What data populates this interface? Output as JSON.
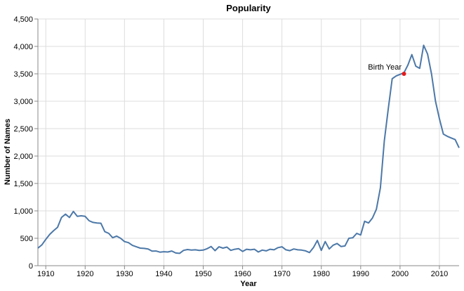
{
  "chart_data": {
    "type": "line",
    "title": "Popularity",
    "xlabel": "Year",
    "ylabel": "Number of Names",
    "xlim": [
      1908,
      2015
    ],
    "ylim": [
      0,
      4500
    ],
    "x_ticks": [
      "1910",
      "1920",
      "1930",
      "1940",
      "1950",
      "1960",
      "1970",
      "1980",
      "1990",
      "2000",
      "2010"
    ],
    "y_ticks": [
      "0",
      "500",
      "1,000",
      "1,500",
      "2,000",
      "2,500",
      "3,000",
      "3,500",
      "4,000",
      "4,500"
    ],
    "grid": true,
    "line_color": "#4c78a8",
    "highlight_color": "#e41a1c",
    "annotation": {
      "label": "Birth Year",
      "x": 2001,
      "y": 3500
    },
    "series": [
      {
        "x": [
          1908,
          1909,
          1910,
          1911,
          1912,
          1913,
          1914,
          1915,
          1916,
          1917,
          1918,
          1919,
          1920,
          1921,
          1922,
          1923,
          1924,
          1925,
          1926,
          1927,
          1928,
          1929,
          1930,
          1931,
          1932,
          1933,
          1934,
          1935,
          1936,
          1937,
          1938,
          1939,
          1940,
          1941,
          1942,
          1943,
          1944,
          1945,
          1946,
          1947,
          1948,
          1949,
          1950,
          1951,
          1952,
          1953,
          1954,
          1955,
          1956,
          1957,
          1958,
          1959,
          1960,
          1961,
          1962,
          1963,
          1964,
          1965,
          1966,
          1967,
          1968,
          1969,
          1970,
          1971,
          1972,
          1973,
          1974,
          1975,
          1976,
          1977,
          1978,
          1979,
          1980,
          1981,
          1982,
          1983,
          1984,
          1985,
          1986,
          1987,
          1988,
          1989,
          1990,
          1991,
          1992,
          1993,
          1994,
          1995,
          1996,
          1997,
          1998,
          1999,
          2000,
          2001,
          2002,
          2003,
          2004,
          2005,
          2006,
          2007,
          2008,
          2009,
          2010,
          2011,
          2012,
          2013,
          2014,
          2015
        ],
        "values": [
          320,
          380,
          480,
          570,
          640,
          700,
          880,
          940,
          880,
          990,
          900,
          910,
          900,
          820,
          790,
          780,
          775,
          620,
          590,
          510,
          540,
          500,
          440,
          420,
          370,
          345,
          320,
          315,
          305,
          265,
          268,
          248,
          255,
          250,
          268,
          232,
          225,
          280,
          295,
          285,
          290,
          280,
          285,
          310,
          350,
          275,
          345,
          320,
          340,
          280,
          300,
          310,
          260,
          300,
          290,
          300,
          250,
          285,
          270,
          300,
          290,
          330,
          345,
          290,
          275,
          305,
          290,
          285,
          270,
          240,
          330,
          460,
          280,
          440,
          305,
          375,
          405,
          350,
          360,
          500,
          510,
          590,
          560,
          810,
          780,
          870,
          1030,
          1420,
          2280,
          2860,
          3410,
          3460,
          3490,
          3520,
          3660,
          3850,
          3640,
          3600,
          4020,
          3860,
          3500,
          3000,
          2680,
          2400,
          2360,
          2330,
          2300,
          2150
        ]
      }
    ]
  }
}
